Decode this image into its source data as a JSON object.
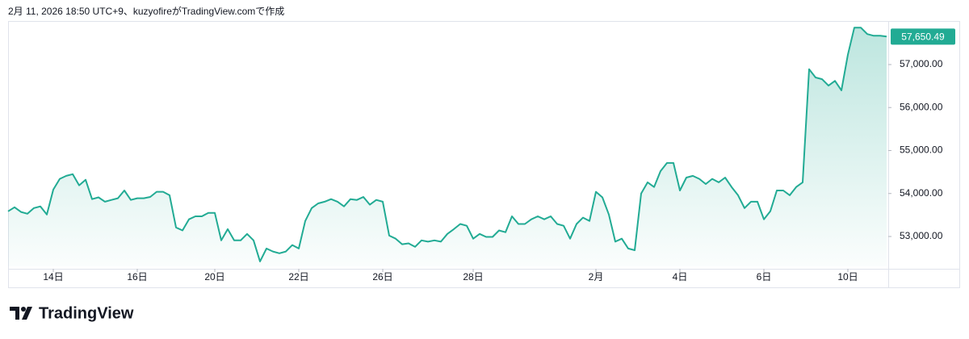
{
  "chart_data": {
    "type": "area",
    "header": "2月 11, 2026 18:50 UTC+9、kuzyofireがTradingView.comで作成",
    "brand": "TradingView",
    "color": "#22ab94",
    "price_label": "57,650.49",
    "values": [
      53585,
      53680,
      53570,
      53530,
      53660,
      53700,
      53510,
      54090,
      54340,
      54410,
      54450,
      54190,
      54320,
      53870,
      53910,
      53810,
      53850,
      53890,
      54070,
      53850,
      53890,
      53890,
      53920,
      54040,
      54040,
      53960,
      53210,
      53140,
      53400,
      53470,
      53470,
      53550,
      53550,
      52910,
      53170,
      52910,
      52910,
      53060,
      52910,
      52420,
      52720,
      52650,
      52610,
      52650,
      52800,
      52720,
      53360,
      53660,
      53770,
      53810,
      53870,
      53810,
      53700,
      53870,
      53850,
      53920,
      53740,
      53850,
      53810,
      53020,
      52950,
      52820,
      52840,
      52760,
      52910,
      52880,
      52910,
      52880,
      53060,
      53170,
      53290,
      53250,
      52950,
      53060,
      52990,
      52990,
      53140,
      53100,
      53470,
      53290,
      53290,
      53400,
      53470,
      53400,
      53470,
      53290,
      53250,
      52950,
      53290,
      53440,
      53360,
      54040,
      53910,
      53510,
      52880,
      52950,
      52720,
      52680,
      54000,
      54260,
      54150,
      54520,
      54710,
      54710,
      54070,
      54370,
      54410,
      54340,
      54220,
      54340,
      54260,
      54370,
      54150,
      53960,
      53660,
      53810,
      53810,
      53400,
      53590,
      54070,
      54070,
      53960,
      54150,
      54260,
      56890,
      56700,
      56660,
      56510,
      56620,
      56400,
      57230,
      57860,
      57860,
      57710,
      57670,
      57670,
      57650.49
    ],
    "xticks": [
      {
        "value": 7,
        "label": "14日"
      },
      {
        "value": 20,
        "label": "16日"
      },
      {
        "value": 32,
        "label": "20日"
      },
      {
        "value": 45,
        "label": "22日"
      },
      {
        "value": 58,
        "label": "26日"
      },
      {
        "value": 72,
        "label": "28日"
      },
      {
        "value": 91,
        "label": "2月"
      },
      {
        "value": 104,
        "label": "4日"
      },
      {
        "value": 117,
        "label": "6日"
      },
      {
        "value": 130,
        "label": "10日"
      }
    ],
    "ylim": [
      52305,
      57976
    ],
    "yticks": [
      {
        "value": 53000,
        "label": "53,000.00"
      },
      {
        "value": 54000,
        "label": "54,000.00"
      },
      {
        "value": 55000,
        "label": "55,000.00"
      },
      {
        "value": 56000,
        "label": "56,000.00"
      },
      {
        "value": 57000,
        "label": "57,000.00"
      }
    ]
  }
}
